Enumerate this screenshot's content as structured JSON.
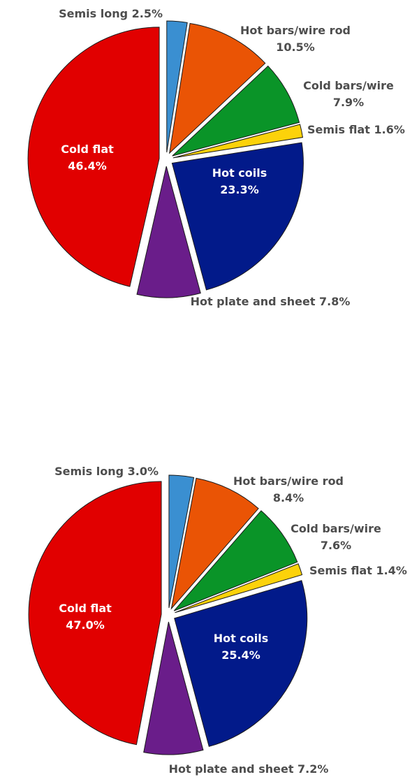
{
  "chart_data": [
    {
      "type": "pie",
      "slices": [
        {
          "key": "semis_long",
          "name": "Semis long",
          "value": 2.5,
          "label": "Semis long 2.5%",
          "color": "#3a8fd1"
        },
        {
          "key": "hot_bars",
          "name": "Hot bars/wire rod",
          "value": 10.5,
          "label_lines": [
            "Hot bars/wire rod",
            "10.5%"
          ],
          "color": "#ea5405"
        },
        {
          "key": "cold_bars",
          "name": "Cold bars/wire",
          "value": 7.9,
          "label_lines": [
            "Cold bars/wire",
            "7.9%"
          ],
          "color": "#0a9428"
        },
        {
          "key": "semis_flat",
          "name": "Semis flat",
          "value": 1.6,
          "label": "Semis flat 1.6%",
          "color": "#fcd20a"
        },
        {
          "key": "hot_coils",
          "name": "Hot coils",
          "value": 23.3,
          "label_lines": [
            "Hot coils",
            "23.3%"
          ],
          "color": "#021a8a"
        },
        {
          "key": "hot_plate",
          "name": "Hot plate and sheet",
          "value": 7.8,
          "label": "Hot plate and sheet 7.8%",
          "color": "#6a1d8a"
        },
        {
          "key": "cold_flat",
          "name": "Cold flat",
          "value": 46.4,
          "label_lines": [
            "Cold flat",
            "46.4%"
          ],
          "color": "#e10000"
        }
      ]
    },
    {
      "type": "pie",
      "slices": [
        {
          "key": "semis_long",
          "name": "Semis long",
          "value": 3.0,
          "label": "Semis long 3.0%",
          "color": "#3a8fd1"
        },
        {
          "key": "hot_bars",
          "name": "Hot bars/wire rod",
          "value": 8.4,
          "label_lines": [
            "Hot bars/wire rod",
            "8.4%"
          ],
          "color": "#ea5405"
        },
        {
          "key": "cold_bars",
          "name": "Cold bars/wire",
          "value": 7.6,
          "label_lines": [
            "Cold bars/wire",
            "7.6%"
          ],
          "color": "#0a9428"
        },
        {
          "key": "semis_flat",
          "name": "Semis flat",
          "value": 1.4,
          "label": "Semis flat 1.4%",
          "color": "#fcd20a"
        },
        {
          "key": "hot_coils",
          "name": "Hot coils",
          "value": 25.4,
          "label_lines": [
            "Hot coils",
            "25.4%"
          ],
          "color": "#021a8a"
        },
        {
          "key": "hot_plate",
          "name": "Hot plate and sheet",
          "value": 7.2,
          "label": "Hot plate and sheet 7.2%",
          "color": "#6a1d8a"
        },
        {
          "key": "cold_flat",
          "name": "Cold flat",
          "value": 47.0,
          "label_lines": [
            "Cold flat",
            "47.0%"
          ],
          "color": "#e10000"
        }
      ]
    }
  ]
}
